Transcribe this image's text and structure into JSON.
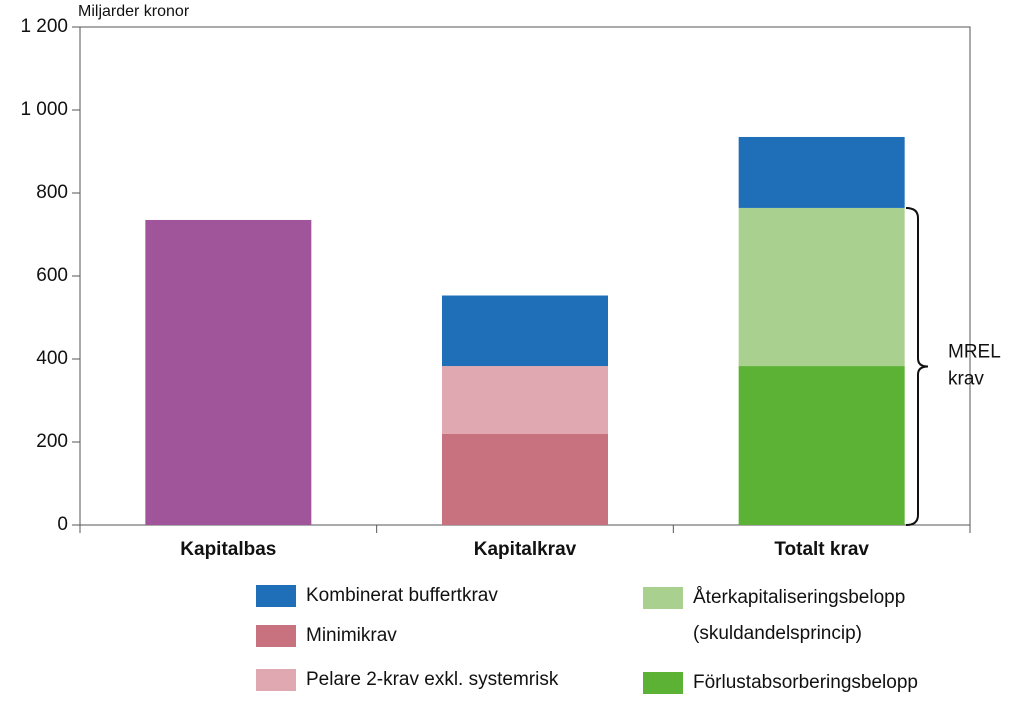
{
  "chart_data": {
    "type": "stacked_bar",
    "y_label": "Miljarder kronor",
    "categories": [
      "Kapitalbas",
      "Kapitalkrav",
      "Totalt krav"
    ],
    "series": [
      {
        "color": "#a0559b",
        "values": [
          735,
          null,
          null
        ]
      },
      {
        "name": "Minimikrav",
        "color": "#c8727f",
        "values": [
          null,
          220,
          null
        ]
      },
      {
        "name": "Pelare 2-krav exkl. systemrisk",
        "color": "#e0a9b1",
        "values": [
          null,
          163,
          null
        ]
      },
      {
        "name": "Förlustabsorberingsbelopp",
        "color": "#5bb234",
        "values": [
          null,
          null,
          383
        ]
      },
      {
        "name": "Återkapitaliseringsbelopp (skuldandelsprincip)",
        "color": "#a9d08e",
        "values": [
          null,
          null,
          381
        ]
      },
      {
        "name": "Kombinerat buffertkrav",
        "color": "#1f6fb8",
        "values": [
          null,
          170,
          171
        ]
      }
    ],
    "ylim": [
      0,
      1200
    ],
    "yticks": [
      0,
      200,
      400,
      600,
      800,
      {
        "value": 1000,
        "label": "1 000"
      },
      {
        "value": 1200,
        "label": "1 200"
      }
    ],
    "grid": false,
    "annotation": [
      "MREL",
      "krav"
    ]
  }
}
